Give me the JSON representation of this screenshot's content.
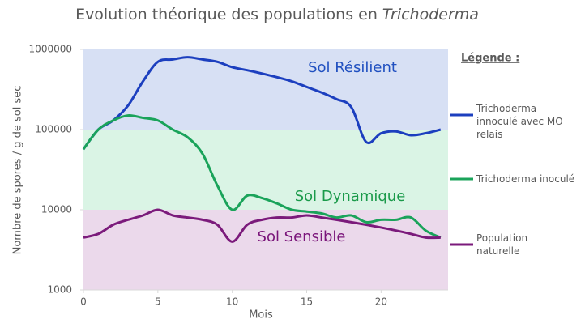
{
  "chart_data": {
    "type": "line",
    "title": [
      "Evolution théorique des populations en",
      "Trichoderma"
    ],
    "x_label": "Mois",
    "y_label": "Nombre de spores / g de sol sec",
    "legend_title": "Légende :",
    "log_scale": true,
    "xlim": [
      0,
      24.5
    ],
    "xticks": [
      0,
      5,
      10,
      15,
      20
    ],
    "ylim": [
      1000,
      1000000
    ],
    "yticks": [
      1000,
      10000,
      100000,
      1000000
    ],
    "zones": [
      {
        "label": "Sol Résilient",
        "from": 100000,
        "to": 1000000,
        "color": "#d7e0f4",
        "label_color": "#2050c0"
      },
      {
        "label": "Sol Dynamique",
        "from": 10000,
        "to": 100000,
        "color": "#daf4e5",
        "label_color": "#1a9a4a"
      },
      {
        "label": "Sol Sensible",
        "from": 1000,
        "to": 10000,
        "color": "#ebd9eb",
        "label_color": "#7a157a"
      }
    ],
    "x": [
      0,
      1,
      2,
      3,
      4,
      5,
      6,
      7,
      8,
      9,
      10,
      11,
      12,
      13,
      14,
      15,
      16,
      17,
      18,
      19,
      20,
      21,
      22,
      23,
      24
    ],
    "series": [
      {
        "name": "Trichoderma innoculé avec MO relais",
        "color": "#1c3fbf",
        "values": [
          57000,
          100000,
          130000,
          200000,
          400000,
          700000,
          750000,
          800000,
          750000,
          700000,
          600000,
          550000,
          500000,
          450000,
          400000,
          340000,
          290000,
          240000,
          190000,
          70000,
          90000,
          95000,
          85000,
          90000,
          100000
        ]
      },
      {
        "name": "Trichoderma inoculé",
        "color": "#1aa35a",
        "values": [
          57000,
          100000,
          130000,
          150000,
          140000,
          130000,
          100000,
          80000,
          50000,
          20000,
          10000,
          15000,
          14000,
          12000,
          10000,
          9500,
          9000,
          8000,
          8500,
          7000,
          7500,
          7500,
          8000,
          5500,
          4500
        ]
      },
      {
        "name": "Population naturelle",
        "color": "#7b1a7b",
        "values": [
          4500,
          5000,
          6500,
          7500,
          8500,
          10000,
          8500,
          8000,
          7500,
          6500,
          4000,
          6500,
          7500,
          8000,
          8000,
          8500,
          8000,
          7500,
          7000,
          6500,
          6000,
          5500,
          5000,
          4500,
          4500
        ]
      }
    ]
  }
}
